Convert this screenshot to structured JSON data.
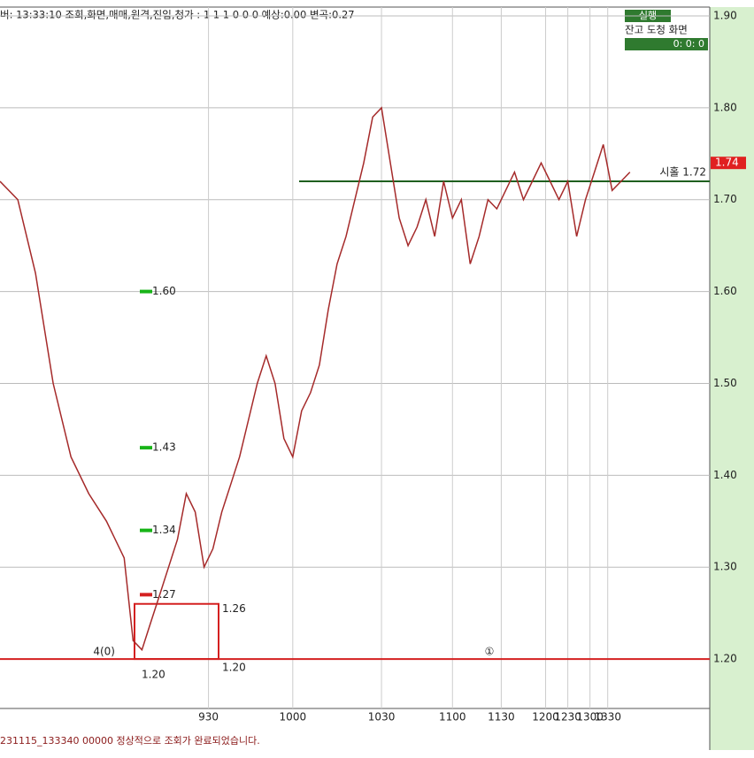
{
  "header": {
    "text": "버: 13:33:10 조회,화면,매매,원격,진입,청가 : 1 1 1 0 0 0 예상:0.00  변곡:0.27"
  },
  "panel": {
    "button": "실행",
    "menu": "잔고 도청 화면",
    "counters": "0:    0:    0"
  },
  "status": "231115_133340 00000 정상적으로 조회가 완료되었습니다.",
  "chart_data": {
    "type": "line",
    "xlim": [
      0,
      160
    ],
    "ylim": [
      1.15,
      1.9
    ],
    "xticks": [
      {
        "value": 47,
        "label": "930"
      },
      {
        "value": 66,
        "label": "1000"
      },
      {
        "value": 86,
        "label": "1030"
      },
      {
        "value": 102,
        "label": "1100"
      },
      {
        "value": 113,
        "label": "1130"
      },
      {
        "value": 123,
        "label": "1200"
      },
      {
        "value": 128,
        "label": "1230"
      },
      {
        "value": 133,
        "label": "1300"
      },
      {
        "value": 137,
        "label": "1330"
      }
    ],
    "yticks": [
      {
        "value": 1.9,
        "label": "1.90"
      },
      {
        "value": 1.8,
        "label": "1.80"
      },
      {
        "value": 1.7,
        "label": "1.70"
      },
      {
        "value": 1.6,
        "label": "1.60"
      },
      {
        "value": 1.5,
        "label": "1.50"
      },
      {
        "value": 1.4,
        "label": "1.40"
      },
      {
        "value": 1.3,
        "label": "1.30"
      },
      {
        "value": 1.2,
        "label": "1.20"
      }
    ],
    "grid": true,
    "series": [
      {
        "color": "#a52a2a",
        "x": [
          0,
          4,
          8,
          12,
          16,
          20,
          24,
          28,
          30,
          32,
          34,
          36,
          38,
          40,
          42,
          44,
          46,
          48,
          50,
          52,
          54,
          56,
          58,
          60,
          62,
          64,
          66,
          68,
          70,
          72,
          74,
          76,
          78,
          80,
          82,
          84,
          86,
          88,
          90,
          92,
          94,
          96,
          98,
          100,
          102,
          104,
          106,
          108,
          110,
          112,
          114,
          116,
          118,
          120,
          122,
          124,
          126,
          128,
          130,
          132,
          134,
          136,
          138,
          140,
          142
        ],
        "values": [
          1.72,
          1.7,
          1.62,
          1.5,
          1.42,
          1.38,
          1.35,
          1.31,
          1.22,
          1.21,
          1.24,
          1.27,
          1.3,
          1.33,
          1.38,
          1.36,
          1.3,
          1.32,
          1.36,
          1.39,
          1.42,
          1.46,
          1.5,
          1.53,
          1.5,
          1.44,
          1.42,
          1.47,
          1.49,
          1.52,
          1.58,
          1.63,
          1.66,
          1.7,
          1.74,
          1.79,
          1.8,
          1.74,
          1.68,
          1.65,
          1.67,
          1.7,
          1.66,
          1.72,
          1.68,
          1.7,
          1.63,
          1.66,
          1.7,
          1.69,
          1.71,
          1.73,
          1.7,
          1.72,
          1.74,
          1.72,
          1.7,
          1.72,
          1.66,
          1.7,
          1.73,
          1.76,
          1.71,
          1.72,
          1.73
        ]
      }
    ],
    "current_price": 1.74,
    "hlines": [
      {
        "value": 1.72,
        "color": "#1f5f1f",
        "label": "시홀 1.72"
      },
      {
        "value": 1.2,
        "color": "#d42020",
        "label": "4(0)"
      }
    ],
    "markers": [
      {
        "value": 1.6,
        "label": "1.60",
        "color": "#18b418"
      },
      {
        "value": 1.43,
        "label": "1.43",
        "color": "#18b418"
      },
      {
        "value": 1.34,
        "label": "1.34",
        "color": "#18b418"
      },
      {
        "value": 1.27,
        "label": "1.27",
        "color": "#d42020"
      }
    ],
    "box": {
      "top": 1.26,
      "bottom": 1.2,
      "color": "#d42020",
      "labels": [
        "1.26",
        "1.20",
        "1.20"
      ]
    },
    "annotation": "①"
  }
}
